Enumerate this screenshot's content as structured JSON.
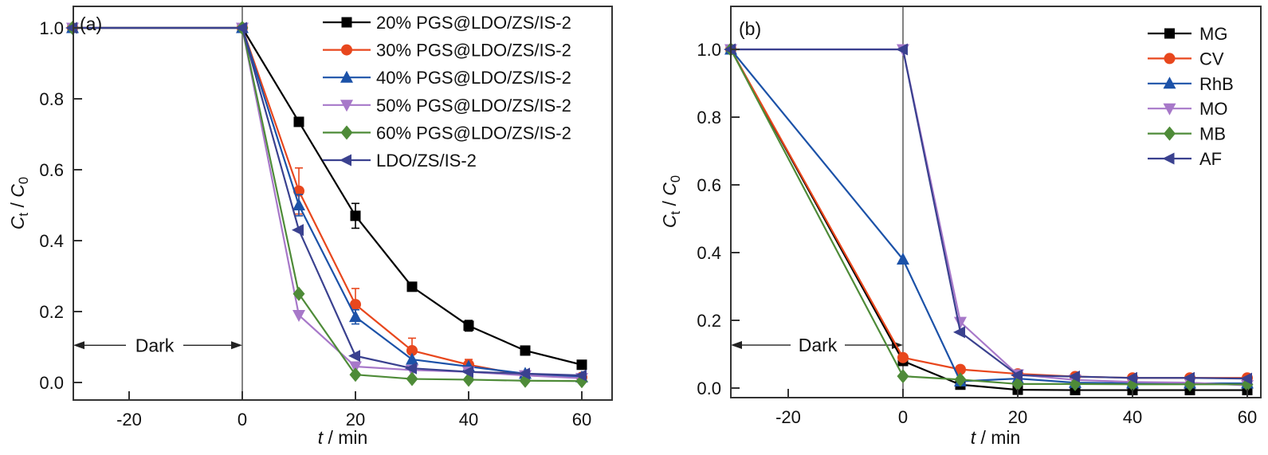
{
  "figure": {
    "description": "Two-panel photocatalytic degradation figure",
    "background": "#ffffff",
    "axis_color": "#333333",
    "vline_color": "#4d4d4d"
  },
  "chart_data": [
    {
      "panel": "a",
      "panel_label": "(a)",
      "type": "line",
      "xlabel": "t / min",
      "ylabel": "Ct / C0",
      "xlabel_rich": [
        {
          "t": "t",
          "i": true
        },
        {
          "t": " / min"
        }
      ],
      "ylabel_rich": [
        {
          "t": "C",
          "i": true
        },
        {
          "t": "t",
          "sub": true
        },
        {
          "t": " / "
        },
        {
          "t": "C",
          "i": true
        },
        {
          "t": "0",
          "sub": true
        }
      ],
      "xlim": [
        -30,
        65.4
      ],
      "ylim": [
        -0.05,
        1.06
      ],
      "xticks": [
        -20,
        0,
        20,
        40,
        60
      ],
      "yticks": [
        0.0,
        0.2,
        0.4,
        0.6,
        0.8,
        1.0
      ],
      "ytick_labels": [
        "0.0",
        "0.2",
        "0.4",
        "0.6",
        "0.8",
        "1.0"
      ],
      "grid": false,
      "legend_position": "upper right inside",
      "light_on_vline_x": 0,
      "dark_annotation": {
        "label": "Dark",
        "x_from": -30,
        "x_to": 0,
        "y": 0.105
      },
      "x": [
        -30,
        0,
        10,
        20,
        30,
        40,
        50,
        60
      ],
      "series": [
        {
          "name": "20% PGS@LDO/ZS/IS-2",
          "color": "#000000",
          "marker": "square",
          "values": [
            1.0,
            1.0,
            0.735,
            0.47,
            0.27,
            0.16,
            0.09,
            0.05
          ],
          "errors": [
            0,
            0,
            0,
            0.035,
            0,
            0.015,
            0,
            0
          ]
        },
        {
          "name": "30% PGS@LDO/ZS/IS-2",
          "color": "#e8471d",
          "marker": "circle",
          "values": [
            1.0,
            1.0,
            0.54,
            0.22,
            0.09,
            0.05,
            0.02,
            0.015
          ],
          "errors": [
            0,
            0,
            0.065,
            0.045,
            0.035,
            0.015,
            0.01,
            0.01
          ]
        },
        {
          "name": "40% PGS@LDO/ZS/IS-2",
          "color": "#1c52a8",
          "marker": "triangle-up",
          "values": [
            1.0,
            1.0,
            0.5,
            0.185,
            0.065,
            0.045,
            0.025,
            0.015
          ],
          "errors": [
            0,
            0,
            0.03,
            0.02,
            0,
            0,
            0,
            0
          ]
        },
        {
          "name": "50% PGS@LDO/ZS/IS-2",
          "color": "#a778c9",
          "marker": "triangle-down",
          "values": [
            1.0,
            1.0,
            0.19,
            0.045,
            0.035,
            0.03,
            0.02,
            0.012
          ],
          "errors": [
            0,
            0,
            0,
            0,
            0,
            0,
            0,
            0
          ]
        },
        {
          "name": "60% PGS@LDO/ZS/IS-2",
          "color": "#4e8b38",
          "marker": "diamond",
          "values": [
            1.0,
            1.0,
            0.25,
            0.022,
            0.01,
            0.008,
            0.005,
            0.004
          ],
          "errors": [
            0,
            0,
            0,
            0,
            0,
            0,
            0,
            0
          ]
        },
        {
          "name": "LDO/ZS/IS-2",
          "color": "#3a418f",
          "marker": "triangle-left",
          "values": [
            1.0,
            1.0,
            0.43,
            0.075,
            0.04,
            0.03,
            0.025,
            0.02
          ],
          "errors": [
            0,
            0,
            0,
            0,
            0,
            0,
            0,
            0
          ]
        }
      ]
    },
    {
      "panel": "b",
      "panel_label": "(b)",
      "type": "line",
      "xlabel": "t / min",
      "ylabel": "Ct / C0",
      "xlabel_rich": [
        {
          "t": "t",
          "i": true
        },
        {
          "t": " / min"
        }
      ],
      "ylabel_rich": [
        {
          "t": "C",
          "i": true
        },
        {
          "t": "t",
          "sub": true
        },
        {
          "t": " / "
        },
        {
          "t": "C",
          "i": true
        },
        {
          "t": "0",
          "sub": true
        }
      ],
      "xlim": [
        -30,
        62.4
      ],
      "ylim": [
        -0.028,
        1.13
      ],
      "xticks": [
        -20,
        0,
        20,
        40,
        60
      ],
      "yticks": [
        0.0,
        0.2,
        0.4,
        0.6,
        0.8,
        1.0
      ],
      "ytick_labels": [
        "0.0",
        "0.2",
        "0.4",
        "0.6",
        "0.8",
        "1.0"
      ],
      "grid": false,
      "legend_position": "upper right inside",
      "light_on_vline_x": 0,
      "dark_annotation": {
        "label": "Dark",
        "x_from": -30,
        "x_to": 0,
        "y": 0.127
      },
      "x": [
        -30,
        0,
        10,
        20,
        30,
        40,
        50,
        60
      ],
      "series": [
        {
          "name": "MG",
          "color": "#000000",
          "marker": "square",
          "values": [
            1.0,
            0.08,
            0.01,
            -0.005,
            -0.006,
            -0.006,
            -0.006,
            -0.006
          ],
          "errors": [
            0,
            0,
            0,
            0,
            0,
            0,
            0,
            0
          ]
        },
        {
          "name": "CV",
          "color": "#e8471d",
          "marker": "circle",
          "values": [
            1.0,
            0.09,
            0.055,
            0.042,
            0.034,
            0.03,
            0.03,
            0.03
          ],
          "errors": [
            0,
            0,
            0,
            0,
            0,
            0,
            0,
            0
          ]
        },
        {
          "name": "RhB",
          "color": "#1c52a8",
          "marker": "triangle-up",
          "values": [
            1.0,
            0.38,
            0.02,
            0.028,
            0.016,
            0.014,
            0.014,
            0.014
          ],
          "errors": [
            0,
            0,
            0,
            0,
            0,
            0,
            0,
            0
          ]
        },
        {
          "name": "MO",
          "color": "#a778c9",
          "marker": "triangle-down",
          "values": [
            1.0,
            1.0,
            0.195,
            0.04,
            0.024,
            0.018,
            0.016,
            0.008
          ],
          "errors": [
            0,
            0,
            0,
            0,
            0,
            0,
            0,
            0
          ]
        },
        {
          "name": "MB",
          "color": "#4e8b38",
          "marker": "diamond",
          "values": [
            1.0,
            0.035,
            0.025,
            0.012,
            0.012,
            0.011,
            0.011,
            0.011
          ],
          "errors": [
            0,
            0,
            0,
            0,
            0,
            0,
            0,
            0
          ]
        },
        {
          "name": "AF",
          "color": "#3a418f",
          "marker": "triangle-left",
          "values": [
            1.0,
            1.0,
            0.165,
            0.038,
            0.034,
            0.03,
            0.03,
            0.028
          ],
          "errors": [
            0,
            0,
            0,
            0,
            0,
            0,
            0,
            0
          ]
        }
      ]
    }
  ]
}
